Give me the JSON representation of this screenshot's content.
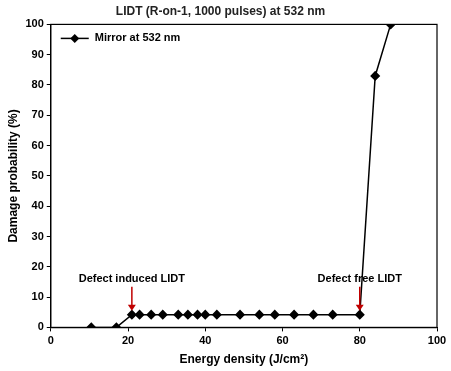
{
  "chart_data": {
    "type": "line",
    "title": "LIDT (R-on-1, 1000 pulses) at 532 nm",
    "x_label": "Energy density (J/cm²)",
    "y_label": "Damage probability (%)",
    "series": [
      {
        "name": "Mirror at 532 nm",
        "color": "#000000",
        "marker": "diamond",
        "line_style": "solid",
        "x": [
          10.5,
          17,
          21,
          23,
          26,
          29,
          33,
          35.5,
          38,
          40,
          43,
          49,
          54,
          58,
          63,
          68,
          73,
          80,
          84,
          88
        ],
        "values": [
          0,
          0,
          4.2,
          4.2,
          4.2,
          4.2,
          4.2,
          4.2,
          4.2,
          4.2,
          4.2,
          4.2,
          4.2,
          4.2,
          4.2,
          4.2,
          4.2,
          4.2,
          83,
          100
        ]
      }
    ],
    "xlim": [
      0,
      100
    ],
    "xticks": [
      0,
      20,
      40,
      60,
      80,
      100
    ],
    "ylim": [
      0,
      100
    ],
    "yticks": [
      0,
      10,
      20,
      30,
      40,
      50,
      60,
      70,
      80,
      90,
      100
    ],
    "grid": false,
    "legend": "upper left",
    "annotations": [
      {
        "text": "Defect induced LIDT",
        "x": 21,
        "y": 4.2
      },
      {
        "text": "Defect free LIDT",
        "x": 80,
        "y": 4.2
      }
    ]
  }
}
